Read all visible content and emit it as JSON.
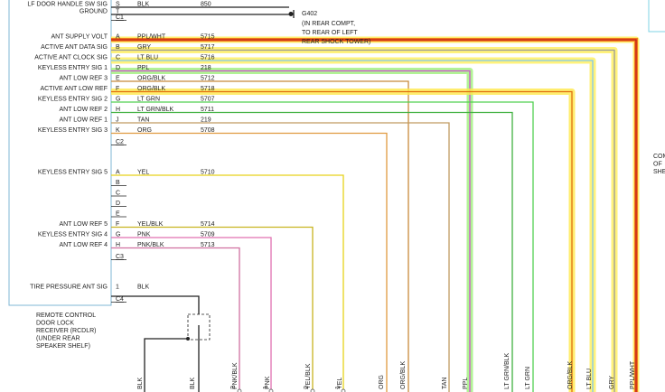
{
  "module": {
    "label_lines": [
      "REMOTE CONTROL",
      "DOOR LOCK",
      "RECEIVER (RCDLR)",
      "(UNDER REAR",
      "SPEAKER SHELF)"
    ]
  },
  "connectors": [
    {
      "name": "C1",
      "pins": [
        {
          "pin": "S",
          "signal": "LF DOOR HANDLE SW SIG",
          "wire": "BLK",
          "circuit": "850"
        },
        {
          "pin": "T",
          "signal": "GROUND"
        }
      ]
    },
    {
      "name": "C2",
      "pins": [
        {
          "pin": "A",
          "signal": "ANT SUPPLY VOLT",
          "wire": "PPL/WHT",
          "circuit": "5715"
        },
        {
          "pin": "B",
          "signal": "ACTIVE ANT DATA SIG",
          "wire": "GRY",
          "circuit": "5717"
        },
        {
          "pin": "C",
          "signal": "ACTIVE ANT CLOCK SIG",
          "wire": "LT BLU",
          "circuit": "5716"
        },
        {
          "pin": "D",
          "signal": "KEYLESS ENTRY SIG 1",
          "wire": "PPL",
          "circuit": "218"
        },
        {
          "pin": "E",
          "signal": "ANT LOW REF 3",
          "wire": "ORG/BLK",
          "circuit": "5712"
        },
        {
          "pin": "F",
          "signal": "ACTIVE ANT LOW REF",
          "wire": "ORG/BLK",
          "circuit": "5718"
        },
        {
          "pin": "G",
          "signal": "KEYLESS ENTRY SIG 2",
          "wire": "LT GRN",
          "circuit": "5707"
        },
        {
          "pin": "H",
          "signal": "ANT LOW REF 2",
          "wire": "LT GRN/BLK",
          "circuit": "5711"
        },
        {
          "pin": "J",
          "signal": "ANT LOW REF 1",
          "wire": "TAN",
          "circuit": "219"
        },
        {
          "pin": "K",
          "signal": "KEYLESS ENTRY SIG 3",
          "wire": "ORG",
          "circuit": "5708"
        }
      ]
    },
    {
      "name": "C3",
      "pins": [
        {
          "pin": "A",
          "signal": "KEYLESS ENTRY SIG 5",
          "wire": "YEL",
          "circuit": "5710"
        },
        {
          "pin": "B"
        },
        {
          "pin": "C"
        },
        {
          "pin": "D"
        },
        {
          "pin": "E"
        },
        {
          "pin": "F",
          "signal": "ANT LOW REF 5",
          "wire": "YEL/BLK",
          "circuit": "5714"
        },
        {
          "pin": "G",
          "signal": "KEYLESS ENTRY SIG 4",
          "wire": "PNK",
          "circuit": "5709"
        },
        {
          "pin": "H",
          "signal": "ANT LOW REF 4",
          "wire": "PNK/BLK",
          "circuit": "5713"
        }
      ]
    },
    {
      "name": "C4",
      "pins": [
        {
          "pin": "1",
          "signal": "TIRE PRESSURE ANT SIG",
          "wire": "BLK"
        }
      ]
    }
  ],
  "ground": {
    "name": "G402",
    "note": [
      "(IN REAR COMPT,",
      "TO REAR OF LEFT",
      "REAR SHOCK TOWER)"
    ]
  },
  "bottom_labels": [
    "BLK",
    "BLK",
    "PNK/BLK",
    "PNK",
    "YEL/BLK",
    "YEL",
    "ORG",
    "ORG/BLK",
    "TAN",
    "PPL",
    "LT GRN/BLK",
    "LT GRN",
    "ORG/BLK",
    "LT BLU",
    "GRY",
    "PPL/WHT"
  ],
  "bottom_pins": [
    "2",
    "1",
    "2",
    "1"
  ],
  "edge_text": [
    "COM",
    "OF",
    "SHE"
  ]
}
